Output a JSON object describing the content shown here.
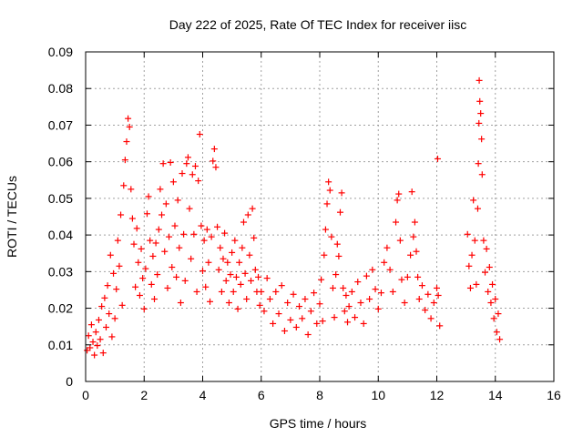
{
  "chart_data": {
    "type": "scatter",
    "title": "Day 222 of 2025, Rate Of TEC Index for receiver iisc",
    "xlabel": "GPS time / hours",
    "ylabel": "ROTI / TECUs",
    "xlim": [
      0,
      16
    ],
    "ylim": [
      0,
      0.09
    ],
    "grid": true,
    "marker": "+",
    "x_ticks": [
      "0",
      "2",
      "4",
      "6",
      "8",
      "10",
      "12",
      "14",
      "16"
    ],
    "y_ticks": [
      "0",
      "0.01",
      "0.02",
      "0.03",
      "0.04",
      "0.05",
      "0.06",
      "0.07",
      "0.08",
      "0.09"
    ],
    "series": [
      {
        "name": "ROTI",
        "color": "#ff0000",
        "points": [
          [
            0.05,
            0.0085
          ],
          [
            0.1,
            0.0125
          ],
          [
            0.15,
            0.0092
          ],
          [
            0.2,
            0.0155
          ],
          [
            0.25,
            0.0108
          ],
          [
            0.3,
            0.0072
          ],
          [
            0.35,
            0.0135
          ],
          [
            0.4,
            0.0098
          ],
          [
            0.45,
            0.0168
          ],
          [
            0.5,
            0.0115
          ],
          [
            0.55,
            0.0205
          ],
          [
            0.6,
            0.0078
          ],
          [
            0.65,
            0.0228
          ],
          [
            0.7,
            0.0148
          ],
          [
            0.75,
            0.0262
          ],
          [
            0.8,
            0.0185
          ],
          [
            0.85,
            0.0345
          ],
          [
            0.9,
            0.0122
          ],
          [
            0.95,
            0.0295
          ],
          [
            1.0,
            0.0172
          ],
          [
            1.05,
            0.0252
          ],
          [
            1.1,
            0.0385
          ],
          [
            1.15,
            0.0315
          ],
          [
            1.2,
            0.0455
          ],
          [
            1.25,
            0.0208
          ],
          [
            1.3,
            0.0535
          ],
          [
            1.35,
            0.0605
          ],
          [
            1.4,
            0.0655
          ],
          [
            1.45,
            0.0718
          ],
          [
            1.5,
            0.0695
          ],
          [
            1.55,
            0.0525
          ],
          [
            1.6,
            0.0445
          ],
          [
            1.65,
            0.0375
          ],
          [
            1.7,
            0.0258
          ],
          [
            1.75,
            0.0418
          ],
          [
            1.8,
            0.0325
          ],
          [
            1.85,
            0.0235
          ],
          [
            1.9,
            0.0362
          ],
          [
            1.95,
            0.0282
          ],
          [
            2.0,
            0.0198
          ],
          [
            2.05,
            0.0308
          ],
          [
            2.1,
            0.0458
          ],
          [
            2.15,
            0.0505
          ],
          [
            2.2,
            0.0385
          ],
          [
            2.25,
            0.0265
          ],
          [
            2.3,
            0.0342
          ],
          [
            2.35,
            0.0225
          ],
          [
            2.4,
            0.0378
          ],
          [
            2.45,
            0.0292
          ],
          [
            2.5,
            0.0415
          ],
          [
            2.55,
            0.0525
          ],
          [
            2.6,
            0.0455
          ],
          [
            2.65,
            0.0595
          ],
          [
            2.7,
            0.0355
          ],
          [
            2.75,
            0.0485
          ],
          [
            2.8,
            0.0255
          ],
          [
            2.85,
            0.0395
          ],
          [
            2.9,
            0.0598
          ],
          [
            2.95,
            0.0312
          ],
          [
            3.0,
            0.0545
          ],
          [
            3.05,
            0.0425
          ],
          [
            3.1,
            0.0285
          ],
          [
            3.15,
            0.0495
          ],
          [
            3.2,
            0.0365
          ],
          [
            3.25,
            0.0215
          ],
          [
            3.3,
            0.0568
          ],
          [
            3.35,
            0.0402
          ],
          [
            3.4,
            0.0275
          ],
          [
            3.45,
            0.0595
          ],
          [
            3.5,
            0.0612
          ],
          [
            3.55,
            0.0472
          ],
          [
            3.6,
            0.0335
          ],
          [
            3.65,
            0.0565
          ],
          [
            3.7,
            0.0402
          ],
          [
            3.75,
            0.0588
          ],
          [
            3.8,
            0.0245
          ],
          [
            3.85,
            0.0548
          ],
          [
            3.9,
            0.0675
          ],
          [
            3.95,
            0.0425
          ],
          [
            4.0,
            0.0302
          ],
          [
            4.05,
            0.0385
          ],
          [
            4.1,
            0.0258
          ],
          [
            4.15,
            0.0415
          ],
          [
            4.2,
            0.0325
          ],
          [
            4.25,
            0.0218
          ],
          [
            4.3,
            0.0395
          ],
          [
            4.35,
            0.0602
          ],
          [
            4.4,
            0.0635
          ],
          [
            4.45,
            0.0585
          ],
          [
            4.5,
            0.0422
          ],
          [
            4.55,
            0.0305
          ],
          [
            4.6,
            0.0365
          ],
          [
            4.65,
            0.0245
          ],
          [
            4.7,
            0.0335
          ],
          [
            4.75,
            0.0405
          ],
          [
            4.8,
            0.0275
          ],
          [
            4.85,
            0.0325
          ],
          [
            4.9,
            0.0215
          ],
          [
            4.95,
            0.0292
          ],
          [
            5.0,
            0.0352
          ],
          [
            5.05,
            0.0245
          ],
          [
            5.1,
            0.0385
          ],
          [
            5.15,
            0.0285
          ],
          [
            5.2,
            0.0198
          ],
          [
            5.25,
            0.0325
          ],
          [
            5.3,
            0.0265
          ],
          [
            5.35,
            0.0365
          ],
          [
            5.4,
            0.0435
          ],
          [
            5.45,
            0.0295
          ],
          [
            5.5,
            0.0225
          ],
          [
            5.55,
            0.0455
          ],
          [
            5.6,
            0.0345
          ],
          [
            5.65,
            0.0275
          ],
          [
            5.7,
            0.0472
          ],
          [
            5.75,
            0.0392
          ],
          [
            5.8,
            0.0305
          ],
          [
            5.85,
            0.0245
          ],
          [
            5.9,
            0.0285
          ],
          [
            5.95,
            0.0208
          ],
          [
            6.0,
            0.0245
          ],
          [
            6.1,
            0.0192
          ],
          [
            6.2,
            0.0282
          ],
          [
            6.3,
            0.0225
          ],
          [
            6.4,
            0.0158
          ],
          [
            6.5,
            0.0245
          ],
          [
            6.6,
            0.0185
          ],
          [
            6.7,
            0.0262
          ],
          [
            6.8,
            0.0138
          ],
          [
            6.9,
            0.0215
          ],
          [
            7.0,
            0.0168
          ],
          [
            7.1,
            0.0238
          ],
          [
            7.2,
            0.0148
          ],
          [
            7.3,
            0.0205
          ],
          [
            7.4,
            0.0172
          ],
          [
            7.5,
            0.0225
          ],
          [
            7.6,
            0.0128
          ],
          [
            7.7,
            0.0192
          ],
          [
            7.8,
            0.0242
          ],
          [
            7.9,
            0.0158
          ],
          [
            8.0,
            0.0212
          ],
          [
            8.05,
            0.0278
          ],
          [
            8.1,
            0.0165
          ],
          [
            8.15,
            0.0345
          ],
          [
            8.2,
            0.0415
          ],
          [
            8.25,
            0.0485
          ],
          [
            8.3,
            0.0545
          ],
          [
            8.35,
            0.0522
          ],
          [
            8.4,
            0.0395
          ],
          [
            8.45,
            0.0255
          ],
          [
            8.5,
            0.0175
          ],
          [
            8.55,
            0.0292
          ],
          [
            8.6,
            0.0375
          ],
          [
            8.65,
            0.0342
          ],
          [
            8.7,
            0.0462
          ],
          [
            8.75,
            0.0515
          ],
          [
            8.8,
            0.0255
          ],
          [
            8.85,
            0.0192
          ],
          [
            8.9,
            0.0235
          ],
          [
            8.95,
            0.0162
          ],
          [
            9.0,
            0.0205
          ],
          [
            9.1,
            0.0245
          ],
          [
            9.2,
            0.0175
          ],
          [
            9.3,
            0.0272
          ],
          [
            9.4,
            0.0215
          ],
          [
            9.5,
            0.0158
          ],
          [
            9.6,
            0.0288
          ],
          [
            9.7,
            0.0225
          ],
          [
            9.8,
            0.0305
          ],
          [
            9.9,
            0.0252
          ],
          [
            10.0,
            0.0198
          ],
          [
            10.1,
            0.0242
          ],
          [
            10.2,
            0.0325
          ],
          [
            10.3,
            0.0365
          ],
          [
            10.4,
            0.0305
          ],
          [
            10.5,
            0.0245
          ],
          [
            10.6,
            0.0435
          ],
          [
            10.65,
            0.0495
          ],
          [
            10.7,
            0.0512
          ],
          [
            10.75,
            0.0385
          ],
          [
            10.8,
            0.0278
          ],
          [
            10.9,
            0.0215
          ],
          [
            11.0,
            0.0285
          ],
          [
            11.1,
            0.0345
          ],
          [
            11.15,
            0.0518
          ],
          [
            11.2,
            0.0395
          ],
          [
            11.25,
            0.0435
          ],
          [
            11.3,
            0.0355
          ],
          [
            11.35,
            0.0285
          ],
          [
            11.4,
            0.0225
          ],
          [
            11.5,
            0.0262
          ],
          [
            11.6,
            0.0195
          ],
          [
            11.7,
            0.0238
          ],
          [
            11.8,
            0.0172
          ],
          [
            11.9,
            0.0215
          ],
          [
            12.0,
            0.0255
          ],
          [
            12.03,
            0.0608
          ],
          [
            12.05,
            0.0235
          ],
          [
            12.1,
            0.0152
          ],
          [
            13.05,
            0.0402
          ],
          [
            13.1,
            0.0315
          ],
          [
            13.15,
            0.0255
          ],
          [
            13.2,
            0.0345
          ],
          [
            13.25,
            0.0495
          ],
          [
            13.3,
            0.0385
          ],
          [
            13.35,
            0.0265
          ],
          [
            13.4,
            0.0472
          ],
          [
            13.42,
            0.0595
          ],
          [
            13.44,
            0.0705
          ],
          [
            13.45,
            0.0822
          ],
          [
            13.47,
            0.0765
          ],
          [
            13.5,
            0.0732
          ],
          [
            13.53,
            0.0662
          ],
          [
            13.55,
            0.0565
          ],
          [
            13.6,
            0.0385
          ],
          [
            13.65,
            0.0298
          ],
          [
            13.7,
            0.0362
          ],
          [
            13.75,
            0.0245
          ],
          [
            13.8,
            0.0312
          ],
          [
            13.85,
            0.0215
          ],
          [
            13.9,
            0.0265
          ],
          [
            13.95,
            0.0172
          ],
          [
            14.0,
            0.0225
          ],
          [
            14.05,
            0.0135
          ],
          [
            14.1,
            0.0185
          ],
          [
            14.15,
            0.0115
          ]
        ]
      }
    ]
  }
}
